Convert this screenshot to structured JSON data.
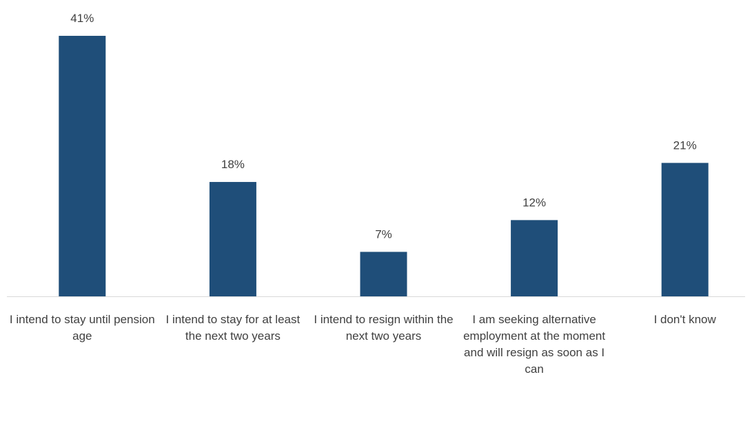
{
  "chart_data": {
    "type": "bar",
    "categories": [
      "I intend to stay until pension age",
      "I intend to stay for at least the next two years",
      "I intend to resign within the next two years",
      "I am seeking alternative employment at the moment and will resign as soon as I can",
      "I don't know"
    ],
    "values": [
      41,
      18,
      7,
      12,
      21
    ],
    "value_labels": [
      "41%",
      "18%",
      "7%",
      "12%",
      "21%"
    ],
    "color": "#1f4e79"
  }
}
